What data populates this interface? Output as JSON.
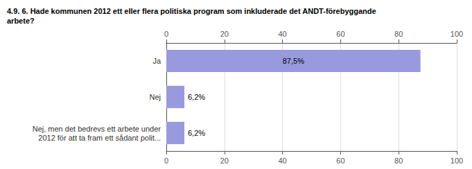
{
  "chart_data": {
    "type": "bar",
    "orientation": "horizontal",
    "title": "4.9. 6. Hade kommunen 2012 ett eller flera politiska program som inkluderade det ANDT-förebyggande\narbete?",
    "categories": [
      "Ja",
      "Nej",
      "Nej, men det bedrevs ett arbete under\n2012 för att ta fram ett sådant polit..."
    ],
    "values": [
      87.5,
      6.2,
      6.2
    ],
    "value_labels": [
      "87,5%",
      "6,2%",
      "6,2%"
    ],
    "data_labels": true,
    "color": "#9999dd",
    "xlim": [
      0,
      100
    ],
    "xticks": [
      0,
      20,
      40,
      60,
      80,
      100
    ],
    "grid": true
  }
}
